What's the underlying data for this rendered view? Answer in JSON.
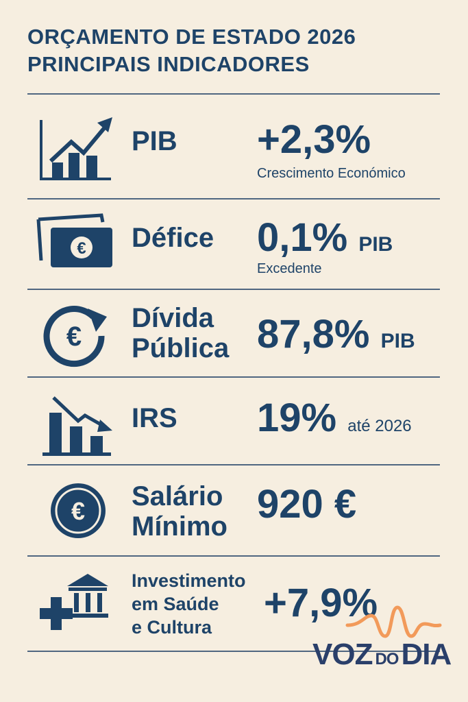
{
  "title": {
    "line1": "ORÇAMENTO DE ESTADO 2026",
    "line2": "PRINCIPAIS INDICADORES"
  },
  "colors": {
    "background": "#f6eee0",
    "primary": "#1e4368",
    "accent": "#f29a5a"
  },
  "indicators": [
    {
      "icon": "growth-chart-icon",
      "label": "PIB",
      "value": "+2,3%",
      "unit": "",
      "sub": "Crescimento Económico"
    },
    {
      "icon": "euro-banknote-icon",
      "label": "Défice",
      "value": "0,1%",
      "unit": "PIB",
      "sub": "Excedente"
    },
    {
      "icon": "euro-cycle-icon",
      "label_line1": "Dívida",
      "label_line2": "Pública",
      "value": "87,8%",
      "unit": "PIB"
    },
    {
      "icon": "declining-chart-icon",
      "label": "IRS",
      "value": "19%",
      "unit": "até 2026"
    },
    {
      "icon": "euro-coin-icon",
      "label_line1": "Salário",
      "label_line2": "Mínimo",
      "value": "920 €"
    },
    {
      "icon": "health-culture-icon",
      "label_line1": "Investimento",
      "label_line2": "em Saúde",
      "label_line3": "e Cultura",
      "value": "+7,9%"
    }
  ],
  "logo": {
    "word1": "VOZ",
    "word2": "DO",
    "word3": "DIA"
  }
}
